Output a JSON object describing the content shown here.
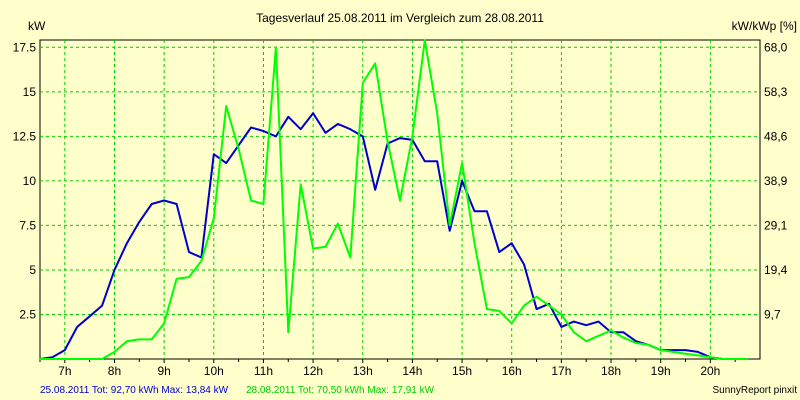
{
  "chart_data": {
    "type": "line",
    "title": "Tagesverlauf 25.08.2011 im Vergleich zum 28.08.2011",
    "ylabel_left": "kW",
    "ylabel_right": "kW/kWp [%]",
    "footer_right": "SunnyReport pinxit",
    "xlim": [
      6.5,
      21.0
    ],
    "ylim": [
      0,
      17.91
    ],
    "x_ticks": [
      7,
      8,
      9,
      10,
      11,
      12,
      13,
      14,
      15,
      16,
      17,
      18,
      19,
      20
    ],
    "x_tick_labels": [
      "7h",
      "8h",
      "9h",
      "10h",
      "11h",
      "12h",
      "13h",
      "14h",
      "15h",
      "16h",
      "17h",
      "18h",
      "19h",
      "20h"
    ],
    "y_ticks": [
      2.5,
      5,
      7.5,
      10,
      12.5,
      15,
      17.5
    ],
    "y_tick_labels": [
      "2.5",
      "5",
      "7.5",
      "10",
      "12.5",
      "15",
      "17.5"
    ],
    "y2_ticks": [
      2.5,
      5,
      7.5,
      10,
      12.5,
      15,
      17.5
    ],
    "y2_tick_labels": [
      "9,7",
      "19,4",
      "29,1",
      "38,9",
      "48,6",
      "58,3",
      "68,0"
    ],
    "grid": true,
    "colors": {
      "series1": "#0000cc",
      "series2": "#00ff00",
      "grid": "#00cc00",
      "background": "#ffffcc"
    },
    "series": [
      {
        "name": "25.08.2011",
        "legend": "25.08.2011 Tot: 92,70 kWh Max: 13,84 kW",
        "color": "#0000cc",
        "x": [
          6.5,
          6.75,
          7.0,
          7.25,
          7.5,
          7.75,
          8.0,
          8.25,
          8.5,
          8.75,
          9.0,
          9.25,
          9.5,
          9.75,
          10.0,
          10.25,
          10.5,
          10.75,
          11.0,
          11.25,
          11.5,
          11.75,
          12.0,
          12.25,
          12.5,
          12.75,
          13.0,
          13.25,
          13.5,
          13.75,
          14.0,
          14.25,
          14.5,
          14.75,
          15.0,
          15.25,
          15.5,
          15.75,
          16.0,
          16.25,
          16.5,
          16.75,
          17.0,
          17.25,
          17.5,
          17.75,
          18.0,
          18.25,
          18.5,
          18.75,
          19.0,
          19.25,
          19.5,
          19.75,
          20.0,
          20.25,
          20.5,
          20.75
        ],
        "values": [
          0.0,
          0.1,
          0.5,
          1.8,
          2.4,
          3.0,
          5.0,
          6.5,
          7.7,
          8.7,
          8.9,
          8.7,
          6.0,
          5.7,
          11.5,
          11.0,
          12.0,
          13.0,
          12.8,
          12.5,
          13.6,
          12.9,
          13.8,
          12.7,
          13.2,
          12.9,
          12.5,
          9.5,
          12.1,
          12.4,
          12.3,
          11.1,
          11.1,
          7.2,
          10.0,
          8.3,
          8.3,
          6.0,
          6.5,
          5.3,
          2.8,
          3.1,
          1.8,
          2.1,
          1.9,
          2.1,
          1.5,
          1.5,
          1.0,
          0.8,
          0.5,
          0.5,
          0.5,
          0.4,
          0.1,
          0.0,
          0.0,
          0.0
        ]
      },
      {
        "name": "28.08.2011",
        "legend": "28.08.2011 Tot: 70,50 kWh Max: 17,91 kW",
        "color": "#00ff00",
        "x": [
          6.5,
          6.75,
          7.0,
          7.25,
          7.5,
          7.75,
          8.0,
          8.25,
          8.5,
          8.75,
          9.0,
          9.25,
          9.5,
          9.75,
          10.0,
          10.25,
          10.5,
          10.75,
          11.0,
          11.25,
          11.5,
          11.75,
          12.0,
          12.25,
          12.5,
          12.75,
          13.0,
          13.25,
          13.5,
          13.75,
          14.0,
          14.25,
          14.5,
          14.75,
          15.0,
          15.25,
          15.5,
          15.75,
          16.0,
          16.25,
          16.5,
          16.75,
          17.0,
          17.25,
          17.5,
          17.75,
          18.0,
          18.25,
          18.5,
          18.75,
          19.0,
          19.25,
          19.5,
          19.75,
          20.0,
          20.25,
          20.5,
          20.75
        ],
        "values": [
          0.0,
          0.0,
          0.0,
          0.0,
          0.0,
          0.0,
          0.4,
          1.0,
          1.1,
          1.1,
          2.0,
          4.5,
          4.6,
          5.5,
          7.9,
          14.2,
          11.8,
          8.9,
          8.7,
          17.5,
          1.5,
          9.8,
          6.2,
          6.3,
          7.6,
          5.7,
          15.5,
          16.6,
          12.2,
          8.9,
          12.5,
          17.9,
          13.8,
          7.5,
          11.0,
          6.5,
          2.8,
          2.7,
          2.0,
          3.0,
          3.5,
          3.0,
          2.5,
          1.5,
          1.0,
          1.3,
          1.6,
          1.2,
          0.9,
          0.8,
          0.5,
          0.4,
          0.3,
          0.2,
          0.1,
          0.0,
          0.0,
          0.0
        ]
      }
    ]
  }
}
